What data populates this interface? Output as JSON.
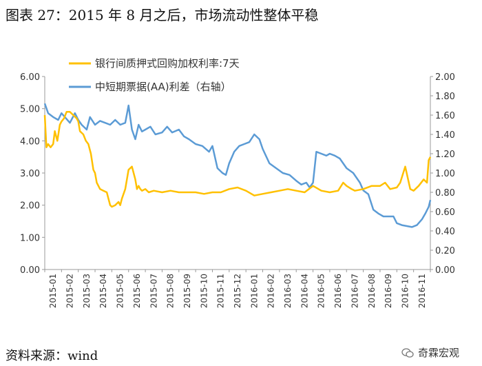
{
  "title": "图表 27：2015 年 8 月之后，市场流动性整体平稳",
  "source": "资料来源：wind",
  "brand": "奇霖宏观",
  "colors": {
    "yield": "#FFC000",
    "spread": "#5B9BD5",
    "axis": "#999999"
  },
  "chart_data": {
    "type": "line",
    "title": "",
    "categories": [
      "2015-01",
      "2015-02",
      "2015-03",
      "2015-04",
      "2015-05",
      "2015-06",
      "2015-07",
      "2015-08",
      "2015-09",
      "2015-10",
      "2015-11",
      "2015-12",
      "2016-01",
      "2016-02",
      "2016-03",
      "2016-04",
      "2016-05",
      "2016-06",
      "2016-07",
      "2016-08",
      "2016-09",
      "2016-10",
      "2016-11"
    ],
    "y_left": {
      "min": 0,
      "max": 6,
      "ticks": [
        "0.00",
        "1.00",
        "2.00",
        "3.00",
        "4.00",
        "5.00",
        "6.00"
      ]
    },
    "y_right": {
      "min": 0,
      "max": 2,
      "ticks": [
        "0.00",
        "0.20",
        "0.40",
        "0.60",
        "0.80",
        "1.00",
        "1.20",
        "1.40",
        "1.60",
        "1.80",
        "2.00"
      ]
    },
    "series": [
      {
        "name": "银行间质押式回购加权利率:7天",
        "axis": "left",
        "x": [
          0,
          0.1,
          0.2,
          0.35,
          0.5,
          0.6,
          0.75,
          0.9,
          1.0,
          1.15,
          1.3,
          1.5,
          1.7,
          1.9,
          2.0,
          2.1,
          2.3,
          2.45,
          2.6,
          2.75,
          2.9,
          3.0,
          3.1,
          3.3,
          3.5,
          3.7,
          3.8,
          3.9,
          4.0,
          4.2,
          4.4,
          4.5,
          4.6,
          4.8,
          5.0,
          5.2,
          5.4,
          5.5,
          5.6,
          5.7,
          5.8,
          6.0,
          6.2,
          6.5,
          7.0,
          7.5,
          8.0,
          8.5,
          9.0,
          9.5,
          10.0,
          10.5,
          11.0,
          11.5,
          12.0,
          12.5,
          13.0,
          13.5,
          14.0,
          14.5,
          15.0,
          15.5,
          16.0,
          16.5,
          17.0,
          17.5,
          17.8,
          18.0,
          18.3,
          18.5,
          19.0,
          19.5,
          20.0,
          20.3,
          20.6,
          21.0,
          21.2,
          21.5,
          21.8,
          22.0,
          22.3,
          22.6,
          22.8,
          22.9,
          23.0
        ],
        "values": [
          4.8,
          3.8,
          3.9,
          3.8,
          3.9,
          4.3,
          4.0,
          4.5,
          4.6,
          4.7,
          4.9,
          4.9,
          4.8,
          4.7,
          4.6,
          4.3,
          4.2,
          4.0,
          3.9,
          3.6,
          3.1,
          3.0,
          2.7,
          2.5,
          2.45,
          2.4,
          2.2,
          2.0,
          1.95,
          2.0,
          2.1,
          2.0,
          2.2,
          2.5,
          3.1,
          3.2,
          2.8,
          2.5,
          2.6,
          2.5,
          2.45,
          2.5,
          2.4,
          2.45,
          2.4,
          2.45,
          2.4,
          2.4,
          2.4,
          2.35,
          2.4,
          2.4,
          2.5,
          2.55,
          2.45,
          2.3,
          2.35,
          2.4,
          2.45,
          2.5,
          2.45,
          2.4,
          2.6,
          2.45,
          2.4,
          2.45,
          2.7,
          2.6,
          2.5,
          2.45,
          2.5,
          2.6,
          2.6,
          2.7,
          2.5,
          2.55,
          2.7,
          3.2,
          2.5,
          2.45,
          2.6,
          2.8,
          2.7,
          3.4,
          3.5
        ]
      },
      {
        "name": "中短期票据(AA)利差（右轴）",
        "axis": "right",
        "x": [
          0,
          0.2,
          0.5,
          0.8,
          1.0,
          1.2,
          1.5,
          1.8,
          2.0,
          2.2,
          2.5,
          2.7,
          3.0,
          3.3,
          3.6,
          3.9,
          4.2,
          4.5,
          4.8,
          5.0,
          5.2,
          5.4,
          5.6,
          5.8,
          6.0,
          6.3,
          6.6,
          7.0,
          7.3,
          7.6,
          8.0,
          8.3,
          8.6,
          9.0,
          9.4,
          9.8,
          10.0,
          10.3,
          10.6,
          10.8,
          11.0,
          11.3,
          11.6,
          11.9,
          12.2,
          12.5,
          12.8,
          13.0,
          13.4,
          13.8,
          14.2,
          14.6,
          15.0,
          15.3,
          15.6,
          15.8,
          16.0,
          16.2,
          16.5,
          16.8,
          17.0,
          17.3,
          17.6,
          18.0,
          18.4,
          18.8,
          19.0,
          19.3,
          19.6,
          19.9,
          20.2,
          20.5,
          20.8,
          21.0,
          21.3,
          21.6,
          21.9,
          22.2,
          22.5,
          22.7,
          22.9,
          23.0
        ],
        "values": [
          1.72,
          1.62,
          1.58,
          1.55,
          1.62,
          1.58,
          1.52,
          1.62,
          1.55,
          1.5,
          1.45,
          1.58,
          1.5,
          1.54,
          1.52,
          1.5,
          1.55,
          1.5,
          1.52,
          1.7,
          1.45,
          1.35,
          1.5,
          1.43,
          1.45,
          1.48,
          1.4,
          1.42,
          1.48,
          1.42,
          1.45,
          1.38,
          1.35,
          1.3,
          1.28,
          1.22,
          1.28,
          1.05,
          1.0,
          0.98,
          1.1,
          1.22,
          1.28,
          1.3,
          1.32,
          1.4,
          1.35,
          1.25,
          1.1,
          1.05,
          1.0,
          0.98,
          0.92,
          0.88,
          0.9,
          0.85,
          0.9,
          1.22,
          1.2,
          1.18,
          1.2,
          1.18,
          1.15,
          1.05,
          1.0,
          0.9,
          0.82,
          0.78,
          0.62,
          0.58,
          0.55,
          0.55,
          0.55,
          0.48,
          0.46,
          0.45,
          0.44,
          0.46,
          0.52,
          0.58,
          0.65,
          0.72
        ]
      }
    ]
  }
}
